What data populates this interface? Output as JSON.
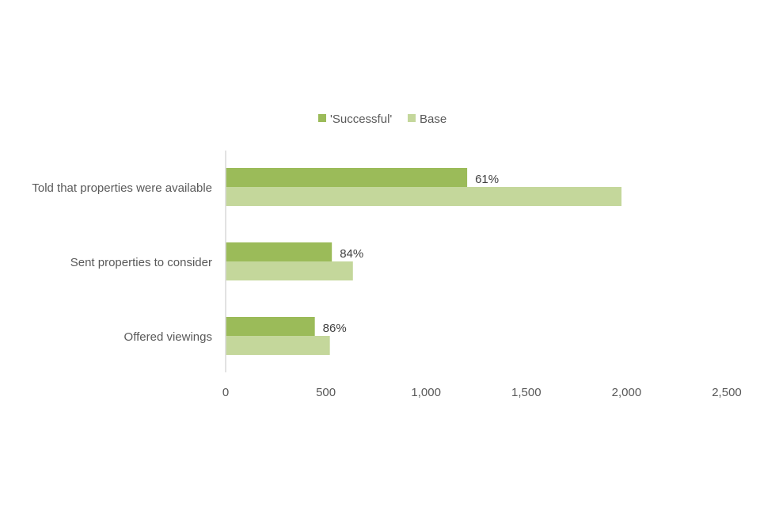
{
  "chart_data": {
    "type": "bar",
    "orientation": "horizontal",
    "categories": [
      "Told that properties were available",
      "Sent properties to consider",
      "Offered viewings"
    ],
    "series": [
      {
        "name": "'Successful'",
        "color": "#9bbb59",
        "values": [
          1205,
          530,
          445
        ],
        "labels": [
          "61%",
          "84%",
          "86%"
        ]
      },
      {
        "name": "Base",
        "color": "#c4d79b",
        "values": [
          1975,
          635,
          520
        ]
      }
    ],
    "xlim": [
      0,
      2500
    ],
    "xticks": [
      0,
      500,
      1000,
      1500,
      2000,
      2500
    ],
    "xtick_labels": [
      "0",
      "500",
      "1,000",
      "1,500",
      "2,000",
      "2,500"
    ],
    "grid": false,
    "legend_position": "top"
  }
}
